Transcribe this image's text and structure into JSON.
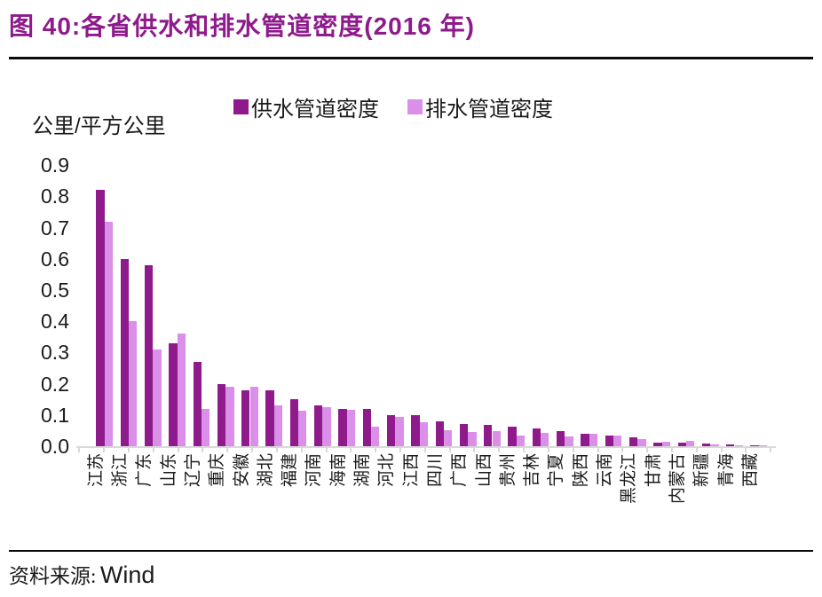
{
  "title": "图 40:各省供水和排水管道密度(2016 年)",
  "source": {
    "label": "资料来源:",
    "value": "Wind"
  },
  "colors": {
    "title": "#8E1A8C",
    "supply_bar": "#8E1A8C",
    "drainage_bar": "#DA90E8",
    "axis_gray": "#D9D9D9",
    "text": "#1A1A1A",
    "rule_black": "#0A0A0A"
  },
  "chart_data": {
    "type": "bar",
    "title": "各省供水和排水管道密度(2016 年)",
    "unit_label": "公里/平方公里",
    "xlabel": "",
    "ylabel": "公里/平方公里",
    "ylim": [
      0,
      0.9
    ],
    "ytick_labels": [
      "0.0",
      "0.1",
      "0.2",
      "0.3",
      "0.4",
      "0.5",
      "0.6",
      "0.7",
      "0.8",
      "0.9"
    ],
    "grid": false,
    "legend_position": "top",
    "categories": [
      "江苏",
      "浙江",
      "广东",
      "山东",
      "辽宁",
      "重庆",
      "安徽",
      "湖北",
      "福建",
      "河南",
      "海南",
      "湖南",
      "河北",
      "江西",
      "四川",
      "广西",
      "山西",
      "贵州",
      "吉林",
      "宁夏",
      "陕西",
      "云南",
      "黑龙江",
      "甘肃",
      "内蒙古",
      "新疆",
      "青海",
      "西藏"
    ],
    "series": [
      {
        "name": "供水管道密度",
        "color": "#8E1A8C",
        "values": [
          0.82,
          0.6,
          0.58,
          0.33,
          0.27,
          0.2,
          0.18,
          0.18,
          0.15,
          0.13,
          0.12,
          0.12,
          0.1,
          0.1,
          0.08,
          0.07,
          0.068,
          0.062,
          0.058,
          0.049,
          0.04,
          0.033,
          0.028,
          0.012,
          0.01,
          0.008,
          0.005,
          0.003
        ]
      },
      {
        "name": "排水管道密度",
        "color": "#DA90E8",
        "values": [
          0.72,
          0.4,
          0.31,
          0.36,
          0.12,
          0.19,
          0.19,
          0.13,
          0.115,
          0.125,
          0.116,
          0.062,
          0.095,
          0.078,
          0.05,
          0.045,
          0.047,
          0.033,
          0.043,
          0.03,
          0.041,
          0.033,
          0.022,
          0.015,
          0.016,
          0.005,
          0.003,
          0.002
        ]
      }
    ]
  }
}
